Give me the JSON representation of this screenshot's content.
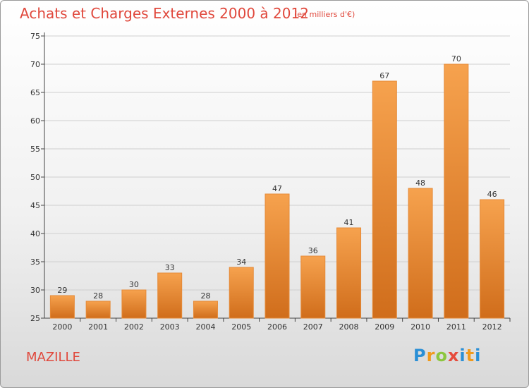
{
  "header": {
    "title": "Achats et Charges Externes 2000 à 2012",
    "subtitle": "(en milliers d'€)"
  },
  "footer": {
    "commune": "MAZILLE",
    "logo": [
      "P",
      "r",
      "o",
      "x",
      "i",
      "t",
      "i"
    ]
  },
  "colors": {
    "bar_top": "#f6a24e",
    "bar_bottom": "#d06d1b",
    "title": "#e0483c",
    "grid": "#cfcfcf"
  },
  "chart_data": {
    "type": "bar",
    "title": "Achats et Charges Externes 2000 à 2012",
    "subtitle": "(en milliers d'€)",
    "xlabel": "",
    "ylabel": "",
    "categories": [
      "2000",
      "2001",
      "2002",
      "2003",
      "2004",
      "2005",
      "2006",
      "2007",
      "2008",
      "2009",
      "2010",
      "2011",
      "2012"
    ],
    "values": [
      29,
      28,
      30,
      33,
      28,
      34,
      47,
      36,
      41,
      67,
      48,
      70,
      46
    ],
    "ylim": [
      25,
      75
    ],
    "yticks": [
      25,
      30,
      35,
      40,
      45,
      50,
      55,
      60,
      65,
      70,
      75
    ],
    "grid": "horizontal",
    "legend": "none"
  }
}
